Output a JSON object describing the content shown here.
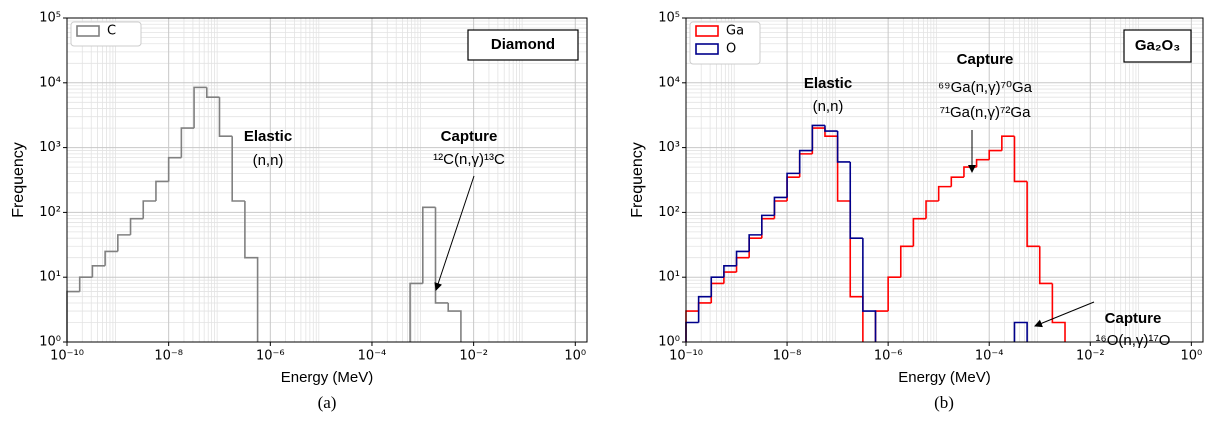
{
  "chart_data": [
    {
      "type": "histogram",
      "title": "Diamond",
      "caption": "(a)",
      "xlabel": "Energy (MeV)",
      "ylabel": "Frequency",
      "xscale": "log",
      "yscale": "log",
      "grid": true,
      "legend": "upper left",
      "xlim": [
        1e-10,
        1.7
      ],
      "ylim": [
        1,
        100000
      ],
      "xticks": [
        {
          "value": 1e-10,
          "label": "10⁻¹⁰"
        },
        {
          "value": 1e-08,
          "label": "10⁻⁸"
        },
        {
          "value": 1e-06,
          "label": "10⁻⁶"
        },
        {
          "value": 0.0001,
          "label": "10⁻⁴"
        },
        {
          "value": 0.01,
          "label": "10⁻²"
        },
        {
          "value": 1,
          "label": "10⁰"
        }
      ],
      "yticks": [
        {
          "value": 1,
          "label": "10⁰"
        },
        {
          "value": 10,
          "label": "10¹"
        },
        {
          "value": 100,
          "label": "10²"
        },
        {
          "value": 1000,
          "label": "10³"
        },
        {
          "value": 10000,
          "label": "10⁴"
        },
        {
          "value": 100000,
          "label": "10⁵"
        }
      ],
      "bins": [
        1e-10,
        1.778e-10,
        3.162e-10,
        5.623e-10,
        1e-09,
        1.778e-09,
        3.162e-09,
        5.623e-09,
        1e-08,
        1.778e-08,
        3.162e-08,
        5.623e-08,
        1e-07,
        1.778e-07,
        3.162e-07,
        5.623e-07,
        1e-06,
        1.778e-06,
        3.162e-06,
        5.623e-06,
        1e-05,
        1.778e-05,
        3.162e-05,
        5.623e-05,
        0.0001,
        0.0001778,
        0.0003162,
        0.0005623,
        0.001,
        0.001778,
        0.003162,
        0.005623,
        0.01,
        0.01778,
        0.03162,
        0.05623,
        0.1,
        0.1778,
        0.3162,
        0.5623,
        1
      ],
      "series": [
        {
          "name": "C",
          "color": "#808080",
          "values": [
            6,
            10,
            15,
            25,
            45,
            80,
            150,
            300,
            700,
            2000,
            8500,
            6000,
            1500,
            150,
            20,
            null,
            null,
            null,
            null,
            null,
            null,
            null,
            null,
            null,
            null,
            null,
            null,
            8,
            120,
            4,
            3,
            null,
            null,
            null,
            null,
            null,
            null,
            null,
            null,
            null
          ]
        }
      ],
      "annotations": [
        "Elastic",
        "(n,n)",
        "Capture",
        "¹²C(n,γ)¹³C"
      ]
    },
    {
      "type": "histogram",
      "title": "Ga₂O₃",
      "caption": "(b)",
      "xlabel": "Energy (MeV)",
      "ylabel": "Frequency",
      "xscale": "log",
      "yscale": "log",
      "grid": true,
      "legend": "upper left",
      "xlim": [
        1e-10,
        1.7
      ],
      "ylim": [
        1,
        100000
      ],
      "xticks": [
        {
          "value": 1e-10,
          "label": "10⁻¹⁰"
        },
        {
          "value": 1e-08,
          "label": "10⁻⁸"
        },
        {
          "value": 1e-06,
          "label": "10⁻⁶"
        },
        {
          "value": 0.0001,
          "label": "10⁻⁴"
        },
        {
          "value": 0.01,
          "label": "10⁻²"
        },
        {
          "value": 1,
          "label": "10⁰"
        }
      ],
      "yticks": [
        {
          "value": 1,
          "label": "10⁰"
        },
        {
          "value": 10,
          "label": "10¹"
        },
        {
          "value": 100,
          "label": "10²"
        },
        {
          "value": 1000,
          "label": "10³"
        },
        {
          "value": 10000,
          "label": "10⁴"
        },
        {
          "value": 100000,
          "label": "10⁵"
        }
      ],
      "bins": [
        1e-10,
        1.778e-10,
        3.162e-10,
        5.623e-10,
        1e-09,
        1.778e-09,
        3.162e-09,
        5.623e-09,
        1e-08,
        1.778e-08,
        3.162e-08,
        5.623e-08,
        1e-07,
        1.778e-07,
        3.162e-07,
        5.623e-07,
        1e-06,
        1.778e-06,
        3.162e-06,
        5.623e-06,
        1e-05,
        1.778e-05,
        3.162e-05,
        5.623e-05,
        0.0001,
        0.0001778,
        0.0003162,
        0.0005623,
        0.001,
        0.001778,
        0.003162,
        0.005623,
        0.01,
        0.01778,
        0.03162,
        0.05623,
        0.1,
        0.1778,
        0.3162,
        0.5623,
        1
      ],
      "series": [
        {
          "name": "Ga",
          "color": "#ff0000",
          "values": [
            3,
            4,
            8,
            12,
            20,
            40,
            80,
            150,
            350,
            800,
            2000,
            1500,
            150,
            5,
            null,
            3,
            10,
            30,
            80,
            150,
            250,
            350,
            500,
            650,
            900,
            1500,
            300,
            30,
            8,
            2,
            null,
            null,
            null,
            null,
            null,
            null,
            null,
            null,
            null,
            null
          ]
        },
        {
          "name": "O",
          "color": "#00008b",
          "values": [
            2,
            5,
            10,
            15,
            25,
            45,
            90,
            170,
            400,
            900,
            2200,
            1800,
            600,
            40,
            3,
            null,
            null,
            null,
            null,
            null,
            null,
            null,
            null,
            null,
            null,
            null,
            2,
            null,
            null,
            null,
            null,
            null,
            null,
            null,
            null,
            null,
            null,
            null,
            null,
            null
          ]
        }
      ],
      "annotations": [
        "Elastic",
        "(n,n)",
        "Capture",
        "⁶⁹Ga(n,γ)⁷⁰Ga",
        "⁷¹Ga(n,γ)⁷²Ga",
        "Capture",
        "¹⁶O(n,γ)¹⁷O"
      ]
    }
  ]
}
